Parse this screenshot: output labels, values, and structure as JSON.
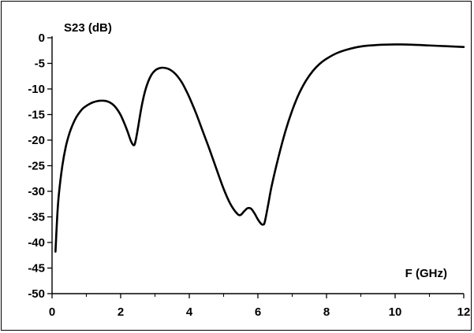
{
  "chart_data": {
    "type": "line",
    "title": "",
    "xlabel": "F (GHz)",
    "ylabel": "S23 (dB)",
    "xlim": [
      0,
      12
    ],
    "ylim": [
      -50,
      0
    ],
    "x_ticks": [
      0,
      2,
      4,
      6,
      8,
      10,
      12
    ],
    "y_ticks": [
      0,
      -5,
      -10,
      -15,
      -20,
      -25,
      -30,
      -35,
      -40,
      -45,
      -50
    ],
    "x_tick_labels": [
      "0",
      "2",
      "4",
      "6",
      "8",
      "10",
      "12"
    ],
    "y_tick_labels": [
      "0",
      "-5",
      "-10",
      "-15",
      "-20",
      "-25",
      "-30",
      "-35",
      "-40",
      "-45",
      "-50"
    ],
    "grid": false,
    "legend": "none",
    "line_color": "#000000",
    "series": [
      {
        "x": [
          0.1,
          0.15,
          0.2,
          0.3,
          0.4,
          0.5,
          0.6,
          0.7,
          0.8,
          0.9,
          1.0,
          1.1,
          1.2,
          1.3,
          1.4,
          1.5,
          1.6,
          1.7,
          1.8,
          1.9,
          2.0,
          2.1,
          2.2,
          2.3,
          2.38,
          2.43,
          2.5,
          2.6,
          2.7,
          2.8,
          2.9,
          3.0,
          3.1,
          3.2,
          3.3,
          3.4,
          3.5,
          3.6,
          3.7,
          3.8,
          3.9,
          4.0,
          4.2,
          4.4,
          4.6,
          4.8,
          5.0,
          5.2,
          5.4,
          5.5,
          5.6,
          5.7,
          5.8,
          5.9,
          6.0,
          6.1,
          6.15,
          6.2,
          6.3,
          6.4,
          6.6,
          6.8,
          7.0,
          7.2,
          7.4,
          7.6,
          7.8,
          8.0,
          8.3,
          8.6,
          9.0,
          9.5,
          10.0,
          10.5,
          11.0,
          11.5,
          12.0
        ],
        "y": [
          -41.8,
          -35.0,
          -30.5,
          -25.0,
          -21.3,
          -18.8,
          -17.0,
          -15.6,
          -14.6,
          -13.8,
          -13.3,
          -12.9,
          -12.6,
          -12.4,
          -12.3,
          -12.3,
          -12.4,
          -12.7,
          -13.2,
          -14.0,
          -15.1,
          -16.6,
          -18.3,
          -20.2,
          -21.0,
          -20.3,
          -17.8,
          -13.8,
          -10.7,
          -8.6,
          -7.2,
          -6.4,
          -6.0,
          -5.85,
          -5.9,
          -6.1,
          -6.5,
          -7.1,
          -7.9,
          -8.9,
          -10.2,
          -11.6,
          -14.8,
          -18.4,
          -22.0,
          -25.8,
          -29.5,
          -32.5,
          -34.4,
          -34.6,
          -33.9,
          -33.3,
          -33.4,
          -34.3,
          -35.5,
          -36.4,
          -36.5,
          -36.0,
          -32.6,
          -29.0,
          -23.3,
          -18.3,
          -14.2,
          -10.9,
          -8.4,
          -6.5,
          -5.1,
          -4.1,
          -3.0,
          -2.3,
          -1.7,
          -1.4,
          -1.3,
          -1.35,
          -1.5,
          -1.65,
          -1.8
        ]
      }
    ]
  }
}
